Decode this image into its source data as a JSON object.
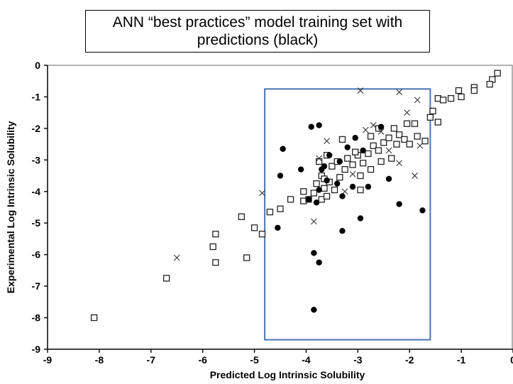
{
  "chart_data": {
    "type": "scatter",
    "title": "ANN “best practices” model training set with predictions (black)",
    "xlabel": "Predicted Log Intrinsic Solubility",
    "ylabel": "Experimental Log Intrinsic Solubility",
    "xlim": [
      -9,
      0
    ],
    "ylim": [
      -9,
      0
    ],
    "xticks": [
      "-9",
      "-8",
      "-7",
      "-6",
      "-5",
      "-4",
      "-3",
      "-2",
      "-1",
      "0"
    ],
    "yticks": [
      "0",
      "-1",
      "-2",
      "-3",
      "-4",
      "-5",
      "-6",
      "-7",
      "-8",
      "-9"
    ],
    "grid": false,
    "highlight_box": {
      "x": [
        -4.8,
        -1.6
      ],
      "y": [
        -8.7,
        -0.75
      ],
      "color": "#4a74b4"
    },
    "series": [
      {
        "marker": "square",
        "points": [
          [
            -8.1,
            -8.0
          ],
          [
            -6.7,
            -6.75
          ],
          [
            -5.8,
            -5.75
          ],
          [
            -5.75,
            -5.35
          ],
          [
            -5.75,
            -6.25
          ],
          [
            -5.25,
            -4.8
          ],
          [
            -5.15,
            -6.1
          ],
          [
            -5.0,
            -5.15
          ],
          [
            -4.85,
            -5.35
          ],
          [
            -4.7,
            -4.65
          ],
          [
            -4.5,
            -4.55
          ],
          [
            -4.3,
            -4.25
          ],
          [
            -4.05,
            -4.0
          ],
          [
            -4.05,
            -4.3
          ],
          [
            -3.95,
            -4.25
          ],
          [
            -3.85,
            -4.05
          ],
          [
            -3.7,
            -4.25
          ],
          [
            -3.65,
            -3.9
          ],
          [
            -3.6,
            -4.15
          ],
          [
            -3.8,
            -3.75
          ],
          [
            -3.7,
            -3.5
          ],
          [
            -3.65,
            -3.6
          ],
          [
            -3.55,
            -3.7
          ],
          [
            -3.5,
            -3.2
          ],
          [
            -3.45,
            -3.95
          ],
          [
            -3.35,
            -3.55
          ],
          [
            -3.4,
            -3.05
          ],
          [
            -3.25,
            -3.3
          ],
          [
            -3.2,
            -2.95
          ],
          [
            -3.1,
            -3.15
          ],
          [
            -3.0,
            -2.85
          ],
          [
            -2.95,
            -3.5
          ],
          [
            -2.9,
            -3.1
          ],
          [
            -2.8,
            -2.8
          ],
          [
            -2.75,
            -3.3
          ],
          [
            -2.7,
            -2.55
          ],
          [
            -2.6,
            -2.7
          ],
          [
            -2.5,
            -2.45
          ],
          [
            -2.4,
            -2.3
          ],
          [
            -2.3,
            -2.0
          ],
          [
            -2.25,
            -2.5
          ],
          [
            -2.2,
            -2.2
          ],
          [
            -2.05,
            -1.85
          ],
          [
            -2.1,
            -2.35
          ],
          [
            -2.0,
            -2.5
          ],
          [
            -1.9,
            -1.85
          ],
          [
            -1.85,
            -2.25
          ],
          [
            -1.7,
            -2.4
          ],
          [
            -1.6,
            -1.65
          ],
          [
            -1.55,
            -1.45
          ],
          [
            -1.45,
            -1.8
          ],
          [
            -1.45,
            -1.05
          ],
          [
            -1.35,
            -1.1
          ],
          [
            -1.2,
            -1.05
          ],
          [
            -1.05,
            -0.8
          ],
          [
            -1.0,
            -1.0
          ],
          [
            -0.75,
            -0.7
          ],
          [
            -0.75,
            -0.8
          ],
          [
            -0.4,
            -0.45
          ],
          [
            -0.45,
            -0.6
          ],
          [
            -0.3,
            -0.25
          ],
          [
            -2.6,
            -2.0
          ],
          [
            -2.75,
            -2.25
          ],
          [
            -3.05,
            -2.75
          ],
          [
            -3.3,
            -2.35
          ],
          [
            -3.6,
            -2.85
          ],
          [
            -3.75,
            -3.05
          ],
          [
            -2.35,
            -2.95
          ],
          [
            -2.55,
            -3.05
          ],
          [
            -2.95,
            -3.95
          ]
        ]
      },
      {
        "marker": "cross",
        "points": [
          [
            -6.5,
            -6.1
          ],
          [
            -4.85,
            -4.05
          ],
          [
            -3.85,
            -4.95
          ],
          [
            -3.25,
            -4.0
          ],
          [
            -2.95,
            -0.8
          ],
          [
            -2.2,
            -0.85
          ],
          [
            -1.85,
            -1.1
          ],
          [
            -1.9,
            -3.5
          ],
          [
            -2.7,
            -1.9
          ],
          [
            -3.6,
            -2.4
          ],
          [
            -3.1,
            -3.45
          ],
          [
            -2.55,
            -2.1
          ],
          [
            -2.2,
            -3.1
          ],
          [
            -1.8,
            -2.55
          ],
          [
            -3.75,
            -2.95
          ],
          [
            -2.85,
            -2.05
          ],
          [
            -2.05,
            -1.5
          ],
          [
            -2.4,
            -2.7
          ]
        ]
      },
      {
        "name": "predictions",
        "marker": "filled-circle",
        "points": [
          [
            -3.9,
            -1.95
          ],
          [
            -3.75,
            -1.9
          ],
          [
            -3.05,
            -2.3
          ],
          [
            -2.55,
            -1.95
          ],
          [
            -4.45,
            -2.65
          ],
          [
            -4.5,
            -3.5
          ],
          [
            -4.55,
            -5.15
          ],
          [
            -3.85,
            -5.95
          ],
          [
            -3.75,
            -6.25
          ],
          [
            -3.85,
            -7.75
          ],
          [
            -3.3,
            -5.25
          ],
          [
            -2.95,
            -4.85
          ],
          [
            -2.2,
            -4.4
          ],
          [
            -1.75,
            -4.6
          ],
          [
            -3.8,
            -4.35
          ],
          [
            -3.65,
            -3.2
          ],
          [
            -3.55,
            -2.85
          ],
          [
            -3.2,
            -2.6
          ],
          [
            -3.1,
            -3.85
          ],
          [
            -3.3,
            -4.15
          ],
          [
            -2.8,
            -3.85
          ],
          [
            -3.75,
            -3.95
          ],
          [
            -3.95,
            -4.25
          ],
          [
            -4.1,
            -3.3
          ],
          [
            -3.4,
            -3.75
          ],
          [
            -2.9,
            -2.7
          ],
          [
            -2.4,
            -3.6
          ],
          [
            -3.7,
            -3.3
          ],
          [
            -3.6,
            -3.65
          ],
          [
            -3.35,
            -3.05
          ]
        ]
      }
    ]
  }
}
